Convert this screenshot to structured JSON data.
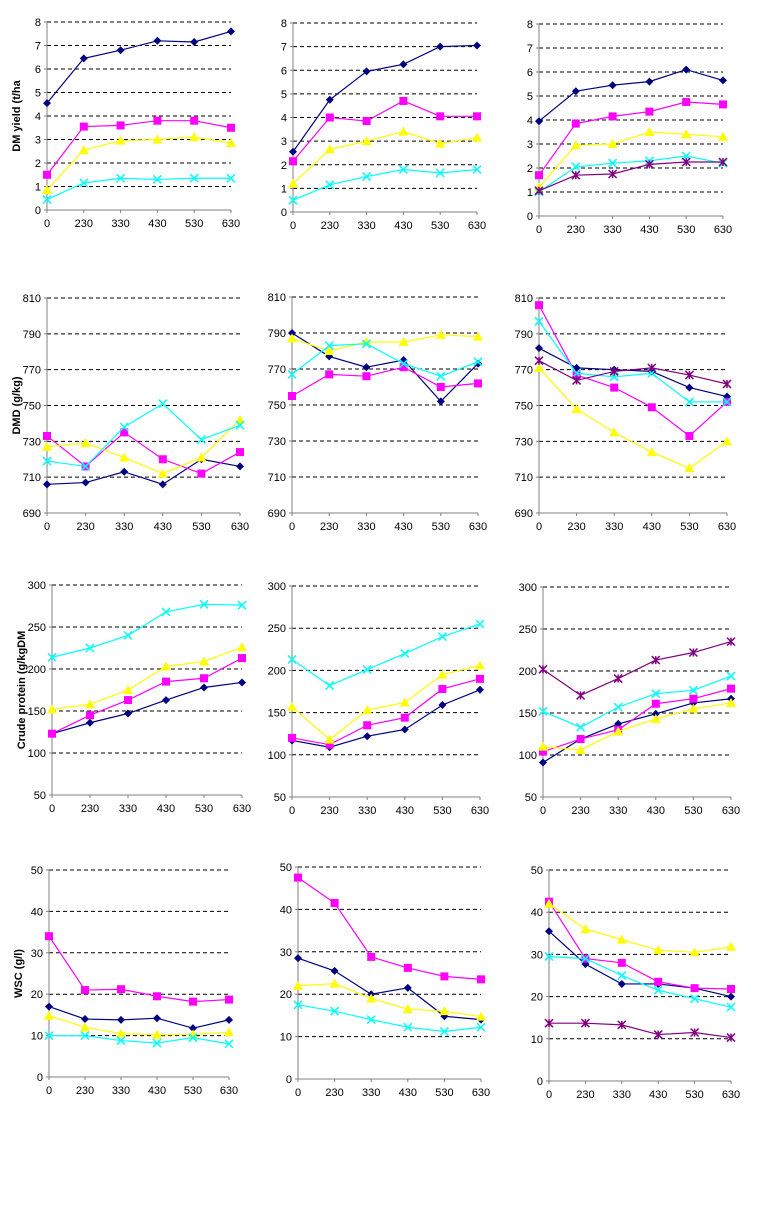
{
  "colors": {
    "s1": "#000080",
    "s2": "#FF00FF",
    "s3": "#FFFF00",
    "s4": "#00FFFF",
    "s5": "#800080"
  },
  "chart_data": [
    {
      "type": "line",
      "xlabel": "",
      "ylabel": "DM yield (t/ha",
      "ylim": [
        0,
        8
      ],
      "yticks": [
        0,
        1,
        2,
        3,
        4,
        5,
        6,
        7,
        8
      ],
      "categories": [
        "0",
        "230",
        "330",
        "430",
        "530",
        "630"
      ],
      "series": [
        {
          "values": [
            4.55,
            6.45,
            6.8,
            7.2,
            7.15,
            7.6
          ],
          "marker": "diamond",
          "color": "#000080"
        },
        {
          "values": [
            1.5,
            3.55,
            3.6,
            3.8,
            3.8,
            3.5
          ],
          "marker": "square",
          "color": "#FF00FF"
        },
        {
          "values": [
            0.85,
            2.55,
            2.95,
            3.0,
            3.1,
            2.85
          ],
          "marker": "triangle",
          "color": "#FFFF00"
        },
        {
          "values": [
            0.45,
            1.15,
            1.35,
            1.3,
            1.35,
            1.35
          ],
          "marker": "x",
          "color": "#00FFFF"
        }
      ]
    },
    {
      "type": "line",
      "xlabel": "",
      "ylabel": "",
      "ylim": [
        0,
        8
      ],
      "yticks": [
        0,
        1,
        2,
        3,
        4,
        5,
        6,
        7,
        8
      ],
      "categories": [
        "0",
        "230",
        "330",
        "430",
        "530",
        "630"
      ],
      "series": [
        {
          "values": [
            2.55,
            4.75,
            5.95,
            6.25,
            7.0,
            7.05
          ],
          "marker": "diamond",
          "color": "#000080"
        },
        {
          "values": [
            2.15,
            4.0,
            3.85,
            4.7,
            4.05,
            4.05
          ],
          "marker": "square",
          "color": "#FF00FF"
        },
        {
          "values": [
            1.2,
            2.65,
            3.0,
            3.4,
            2.9,
            3.15
          ],
          "marker": "triangle",
          "color": "#FFFF00"
        },
        {
          "values": [
            0.5,
            1.15,
            1.5,
            1.8,
            1.65,
            1.8
          ],
          "marker": "x",
          "color": "#00FFFF"
        }
      ]
    },
    {
      "type": "line",
      "xlabel": "",
      "ylabel": "",
      "ylim": [
        0,
        8
      ],
      "yticks": [
        0,
        1,
        2,
        3,
        4,
        5,
        6,
        7,
        8
      ],
      "categories": [
        "0",
        "230",
        "330",
        "430",
        "530",
        "630"
      ],
      "series": [
        {
          "values": [
            3.95,
            5.2,
            5.45,
            5.6,
            6.1,
            5.65
          ],
          "marker": "diamond",
          "color": "#000080"
        },
        {
          "values": [
            1.7,
            3.85,
            4.15,
            4.35,
            4.75,
            4.65
          ],
          "marker": "square",
          "color": "#FF00FF"
        },
        {
          "values": [
            1.2,
            2.95,
            3.0,
            3.5,
            3.4,
            3.3
          ],
          "marker": "triangle",
          "color": "#FFFF00"
        },
        {
          "values": [
            1.0,
            2.05,
            2.2,
            2.3,
            2.5,
            2.2
          ],
          "marker": "x",
          "color": "#00FFFF"
        },
        {
          "values": [
            1.05,
            1.7,
            1.75,
            2.15,
            2.25,
            2.25
          ],
          "marker": "star",
          "color": "#800080"
        }
      ]
    },
    {
      "type": "line",
      "xlabel": "",
      "ylabel": "DMD (g/kg)",
      "ylim": [
        690,
        810
      ],
      "yticks": [
        690,
        710,
        730,
        750,
        770,
        790,
        810
      ],
      "categories": [
        "0",
        "230",
        "330",
        "430",
        "530",
        "630"
      ],
      "series": [
        {
          "values": [
            706,
            707,
            713,
            706,
            720,
            716
          ],
          "marker": "diamond",
          "color": "#000080"
        },
        {
          "values": [
            733,
            716,
            735,
            720,
            712,
            724
          ],
          "marker": "square",
          "color": "#FF00FF"
        },
        {
          "values": [
            727,
            729,
            721,
            712,
            721,
            742
          ],
          "marker": "triangle",
          "color": "#FFFF00"
        },
        {
          "values": [
            719,
            716,
            738,
            751,
            731,
            739
          ],
          "marker": "x",
          "color": "#00FFFF"
        }
      ]
    },
    {
      "type": "line",
      "xlabel": "",
      "ylabel": "",
      "ylim": [
        690,
        810
      ],
      "yticks": [
        690,
        710,
        730,
        750,
        770,
        790,
        810
      ],
      "categories": [
        "0",
        "230",
        "330",
        "430",
        "530",
        "630"
      ],
      "series": [
        {
          "values": [
            790,
            777,
            771,
            775,
            752,
            773
          ],
          "marker": "diamond",
          "color": "#000080"
        },
        {
          "values": [
            755,
            767,
            766,
            771,
            760,
            762
          ],
          "marker": "square",
          "color": "#FF00FF"
        },
        {
          "values": [
            787,
            780,
            785,
            785,
            789,
            788
          ],
          "marker": "triangle",
          "color": "#FFFF00"
        },
        {
          "values": [
            767,
            783,
            784,
            773,
            766,
            774
          ],
          "marker": "x",
          "color": "#00FFFF"
        }
      ]
    },
    {
      "type": "line",
      "xlabel": "",
      "ylabel": "",
      "ylim": [
        690,
        810
      ],
      "yticks": [
        690,
        710,
        730,
        750,
        770,
        790,
        810
      ],
      "categories": [
        "0",
        "230",
        "330",
        "430",
        "530",
        "630"
      ],
      "series": [
        {
          "values": [
            782,
            771,
            770,
            769,
            760,
            755
          ],
          "marker": "diamond",
          "color": "#000080"
        },
        {
          "values": [
            806,
            767,
            760,
            749,
            733,
            752
          ],
          "marker": "square",
          "color": "#FF00FF"
        },
        {
          "values": [
            771,
            748,
            735,
            724,
            715,
            730
          ],
          "marker": "triangle",
          "color": "#FFFF00"
        },
        {
          "values": [
            797,
            768,
            766,
            768,
            752,
            752
          ],
          "marker": "x",
          "color": "#00FFFF"
        },
        {
          "values": [
            775,
            764,
            769,
            771,
            767,
            762
          ],
          "marker": "star",
          "color": "#800080"
        }
      ]
    },
    {
      "type": "line",
      "xlabel": "",
      "ylabel": "Crude protein (g/kgDM",
      "ylim": [
        50,
        300
      ],
      "yticks": [
        50,
        100,
        150,
        200,
        250,
        300
      ],
      "categories": [
        "0",
        "230",
        "330",
        "430",
        "530",
        "630"
      ],
      "series": [
        {
          "values": [
            123,
            136,
            147,
            163,
            178,
            184
          ],
          "marker": "diamond",
          "color": "#000080"
        },
        {
          "values": [
            123,
            145,
            163,
            185,
            189,
            213
          ],
          "marker": "square",
          "color": "#FF00FF"
        },
        {
          "values": [
            152,
            158,
            175,
            203,
            209,
            226
          ],
          "marker": "triangle",
          "color": "#FFFF00"
        },
        {
          "values": [
            214,
            225,
            240,
            268,
            277,
            276
          ],
          "marker": "x",
          "color": "#00FFFF"
        }
      ]
    },
    {
      "type": "line",
      "xlabel": "",
      "ylabel": "",
      "ylim": [
        50,
        300
      ],
      "yticks": [
        50,
        100,
        150,
        200,
        250,
        300
      ],
      "categories": [
        "0",
        "230",
        "330",
        "430",
        "530",
        "630"
      ],
      "series": [
        {
          "values": [
            117,
            109,
            122,
            130,
            159,
            177
          ],
          "marker": "diamond",
          "color": "#000080"
        },
        {
          "values": [
            120,
            112,
            135,
            144,
            178,
            190
          ],
          "marker": "square",
          "color": "#FF00FF"
        },
        {
          "values": [
            157,
            118,
            153,
            162,
            195,
            206
          ],
          "marker": "triangle",
          "color": "#FFFF00"
        },
        {
          "values": [
            213,
            182,
            201,
            220,
            240,
            255
          ],
          "marker": "x",
          "color": "#00FFFF"
        }
      ]
    },
    {
      "type": "line",
      "xlabel": "",
      "ylabel": "",
      "ylim": [
        50,
        300
      ],
      "yticks": [
        50,
        100,
        150,
        200,
        250,
        300
      ],
      "categories": [
        "0",
        "230",
        "330",
        "430",
        "530",
        "630"
      ],
      "series": [
        {
          "values": [
            91,
            119,
            137,
            149,
            162,
            167
          ],
          "marker": "diamond",
          "color": "#000080"
        },
        {
          "values": [
            104,
            119,
            130,
            161,
            167,
            179
          ],
          "marker": "square",
          "color": "#FF00FF"
        },
        {
          "values": [
            110,
            106,
            128,
            143,
            155,
            162
          ],
          "marker": "triangle",
          "color": "#FFFF00"
        },
        {
          "values": [
            152,
            133,
            157,
            173,
            177,
            194
          ],
          "marker": "x",
          "color": "#00FFFF"
        },
        {
          "values": [
            202,
            171,
            191,
            213,
            222,
            235
          ],
          "marker": "star",
          "color": "#800080"
        }
      ]
    },
    {
      "type": "line",
      "xlabel": "",
      "ylabel": "WSC (g/l)",
      "ylim": [
        0,
        50
      ],
      "yticks": [
        0,
        10,
        20,
        30,
        40,
        50
      ],
      "categories": [
        "0",
        "230",
        "330",
        "430",
        "530",
        "630"
      ],
      "series": [
        {
          "values": [
            17.0,
            14.0,
            13.8,
            14.2,
            11.8,
            13.8
          ],
          "marker": "diamond",
          "color": "#000080"
        },
        {
          "values": [
            34.0,
            21.0,
            21.2,
            19.5,
            18.2,
            18.7
          ],
          "marker": "square",
          "color": "#FF00FF"
        },
        {
          "values": [
            14.8,
            12.0,
            10.5,
            10.2,
            10.3,
            10.8
          ],
          "marker": "triangle",
          "color": "#FFFF00"
        },
        {
          "values": [
            10.0,
            10.0,
            8.8,
            8.2,
            9.5,
            8.0
          ],
          "marker": "x",
          "color": "#00FFFF"
        }
      ]
    },
    {
      "type": "line",
      "xlabel": "",
      "ylabel": "",
      "ylim": [
        0,
        50
      ],
      "yticks": [
        0,
        10,
        20,
        30,
        40,
        50
      ],
      "categories": [
        "0",
        "230",
        "330",
        "430",
        "530",
        "630"
      ],
      "series": [
        {
          "values": [
            28.5,
            25.5,
            20.0,
            21.5,
            14.8,
            14.0
          ],
          "marker": "diamond",
          "color": "#000080"
        },
        {
          "values": [
            47.5,
            41.5,
            28.8,
            26.2,
            24.2,
            23.5
          ],
          "marker": "square",
          "color": "#FF00FF"
        },
        {
          "values": [
            22.0,
            22.5,
            19.0,
            16.5,
            16.0,
            14.7
          ],
          "marker": "triangle",
          "color": "#FFFF00"
        },
        {
          "values": [
            17.5,
            16.0,
            14.0,
            12.2,
            11.2,
            12.2
          ],
          "marker": "x",
          "color": "#00FFFF"
        }
      ]
    },
    {
      "type": "line",
      "xlabel": "",
      "ylabel": "",
      "ylim": [
        0,
        50
      ],
      "yticks": [
        0,
        10,
        20,
        30,
        40,
        50
      ],
      "categories": [
        "0",
        "230",
        "330",
        "430",
        "530",
        "630"
      ],
      "series": [
        {
          "values": [
            35.5,
            27.7,
            23.0,
            23.0,
            22.0,
            20.0
          ],
          "marker": "diamond",
          "color": "#000080"
        },
        {
          "values": [
            42.5,
            29.0,
            28.0,
            23.5,
            22.0,
            21.8
          ],
          "marker": "square",
          "color": "#FF00FF"
        },
        {
          "values": [
            42.0,
            36.0,
            33.5,
            31.0,
            30.5,
            31.8
          ],
          "marker": "triangle",
          "color": "#FFFF00"
        },
        {
          "values": [
            29.5,
            29.0,
            25.0,
            21.5,
            19.5,
            17.5
          ],
          "marker": "x",
          "color": "#00FFFF"
        },
        {
          "values": [
            13.7,
            13.7,
            13.3,
            11.0,
            11.5,
            10.3
          ],
          "marker": "star",
          "color": "#800080"
        }
      ]
    }
  ]
}
